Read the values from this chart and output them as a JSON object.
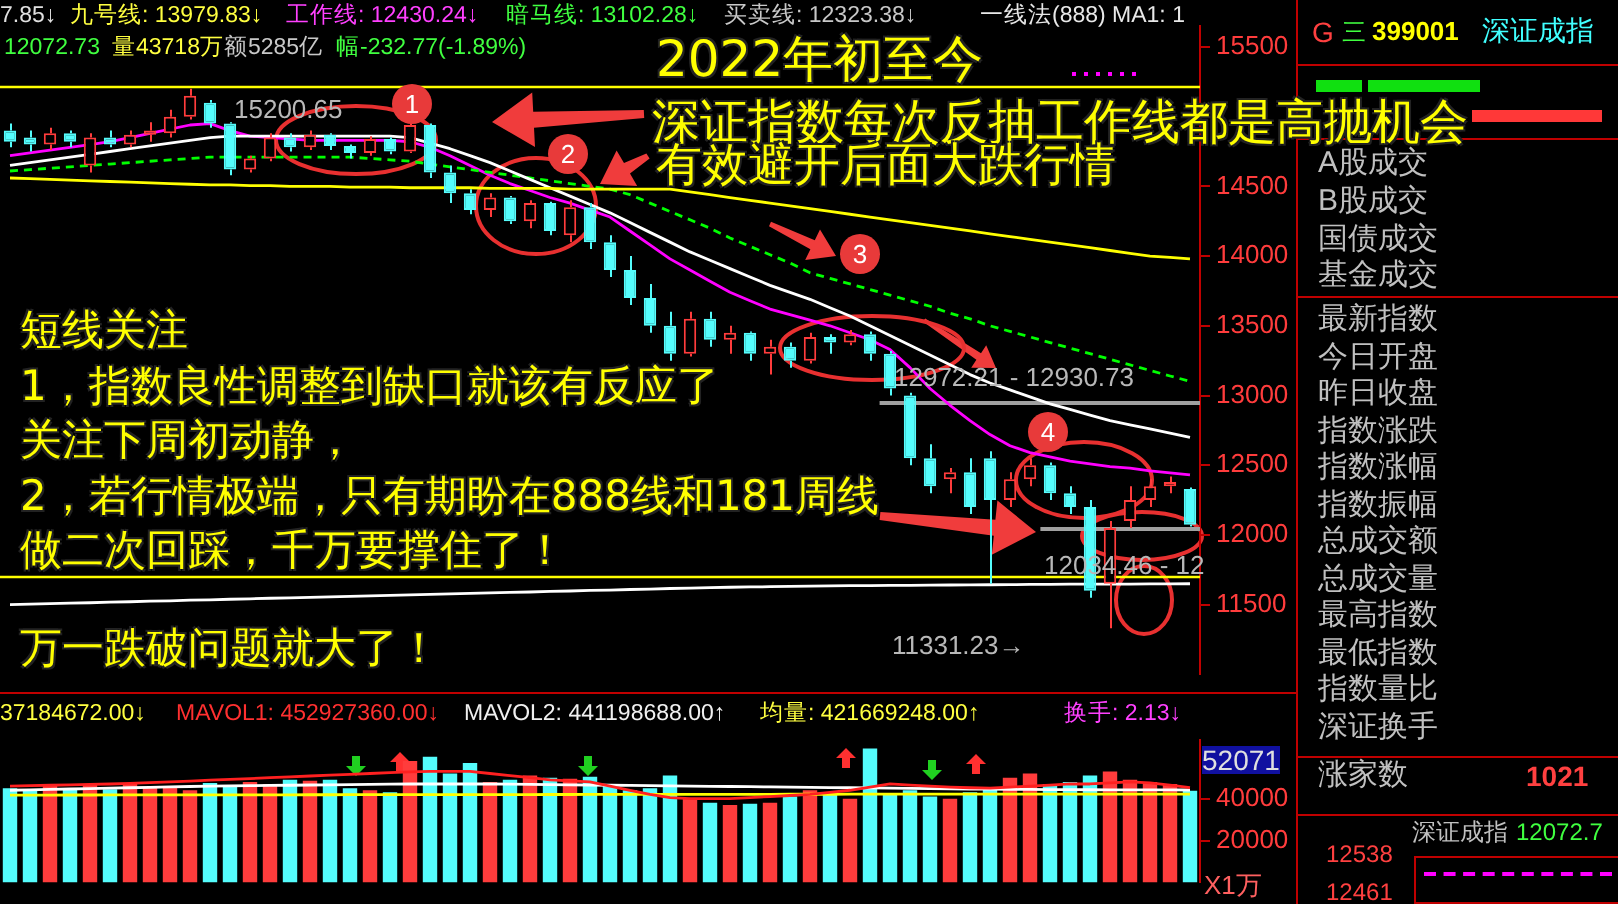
{
  "chart_data": [
    {
      "type": "candlestick",
      "categories": [
        null,
        null,
        null,
        null,
        null,
        null,
        null,
        null,
        null,
        null,
        null,
        null,
        null,
        null,
        null,
        null,
        null,
        null,
        null,
        null,
        null,
        null,
        null,
        null,
        null,
        null,
        null,
        null,
        null,
        null,
        null,
        null,
        null,
        null,
        null,
        null,
        null,
        null,
        null,
        null,
        null,
        null,
        null,
        null,
        null,
        null,
        null,
        null,
        null,
        null,
        null,
        null,
        null,
        null,
        null,
        null,
        null,
        null,
        null,
        null
      ],
      "ohlc": [
        [
          14900,
          14950,
          14780,
          14820
        ],
        [
          14850,
          14900,
          14750,
          14800
        ],
        [
          14800,
          14920,
          14760,
          14880
        ],
        [
          14880,
          14900,
          14780,
          14820
        ],
        [
          14650,
          14880,
          14600,
          14850
        ],
        [
          14850,
          14900,
          14780,
          14800
        ],
        [
          14800,
          14900,
          14780,
          14870
        ],
        [
          14870,
          14960,
          14820,
          14900
        ],
        [
          14880,
          15050,
          14850,
          15000
        ],
        [
          15000,
          15200.65,
          14980,
          15150
        ],
        [
          15100,
          15120,
          14920,
          14950
        ],
        [
          14950,
          14960,
          14580,
          14620
        ],
        [
          14620,
          14720,
          14600,
          14700
        ],
        [
          14700,
          14880,
          14680,
          14850
        ],
        [
          14850,
          14880,
          14750,
          14780
        ],
        [
          14780,
          14900,
          14760,
          14870
        ],
        [
          14870,
          14880,
          14760,
          14790
        ],
        [
          14790,
          14800,
          14700,
          14740
        ],
        [
          14740,
          14860,
          14720,
          14840
        ],
        [
          14840,
          14850,
          14730,
          14750
        ],
        [
          14750,
          14960,
          14740,
          14940
        ],
        [
          14940,
          14950,
          14560,
          14600
        ],
        [
          14600,
          14650,
          14380,
          14450
        ],
        [
          14450,
          14480,
          14300,
          14330
        ],
        [
          14330,
          14450,
          14280,
          14420
        ],
        [
          14420,
          14430,
          14230,
          14250
        ],
        [
          14250,
          14400,
          14200,
          14380
        ],
        [
          14380,
          14390,
          14150,
          14180
        ],
        [
          14150,
          14400,
          14100,
          14350
        ],
        [
          14350,
          14380,
          14050,
          14100
        ],
        [
          14100,
          14150,
          13850,
          13900
        ],
        [
          13900,
          14000,
          13650,
          13700
        ],
        [
          13700,
          13800,
          13450,
          13500
        ],
        [
          13500,
          13600,
          13250,
          13300
        ],
        [
          13300,
          13600,
          13280,
          13550
        ],
        [
          13550,
          13600,
          13350,
          13400
        ],
        [
          13400,
          13500,
          13300,
          13450
        ],
        [
          13450,
          13460,
          13250,
          13300
        ],
        [
          13300,
          13400,
          13150,
          13350
        ],
        [
          13350,
          13380,
          13200,
          13250
        ],
        [
          13250,
          13450,
          13230,
          13420
        ],
        [
          13420,
          13440,
          13300,
          13380
        ],
        [
          13380,
          13470,
          13360,
          13440
        ],
        [
          13440,
          13460,
          13250,
          13300
        ],
        [
          13300,
          13320,
          13000,
          13050
        ],
        [
          13000,
          13020,
          12500,
          12550
        ],
        [
          12550,
          12650,
          12300,
          12350
        ],
        [
          12400,
          12480,
          12300,
          12450
        ],
        [
          12450,
          12550,
          12150,
          12200
        ],
        [
          12550,
          12600,
          11650,
          12250
        ],
        [
          12250,
          12450,
          12200,
          12400
        ],
        [
          12400,
          12550,
          12350,
          12500
        ],
        [
          12500,
          12520,
          12250,
          12300
        ],
        [
          12300,
          12350,
          12150,
          12200
        ],
        [
          12200,
          12250,
          11550,
          11600
        ],
        [
          11650,
          12100,
          11331.23,
          12050
        ],
        [
          12100,
          12350,
          12050,
          12250
        ],
        [
          12250,
          12400,
          12200,
          12350
        ],
        [
          12350,
          12420,
          12300,
          12380
        ],
        [
          12330,
          12340,
          12060,
          12072.73
        ]
      ],
      "colors": [
        "#54fcfc",
        "#54fcfc",
        "#ff3c3c",
        "#54fcfc",
        "#ff3c3c",
        "#54fcfc",
        "#ff3c3c",
        "#ff3c3c",
        "#ff3c3c",
        "#ff3c3c",
        "#54fcfc",
        "#54fcfc",
        "#ff3c3c",
        "#ff3c3c",
        "#54fcfc",
        "#ff3c3c",
        "#54fcfc",
        "#54fcfc",
        "#ff3c3c",
        "#54fcfc",
        "#ff3c3c",
        "#54fcfc",
        "#54fcfc",
        "#54fcfc",
        "#ff3c3c",
        "#54fcfc",
        "#ff3c3c",
        "#54fcfc",
        "#ff3c3c",
        "#54fcfc",
        "#54fcfc",
        "#54fcfc",
        "#54fcfc",
        "#54fcfc",
        "#ff3c3c",
        "#54fcfc",
        "#ff3c3c",
        "#54fcfc",
        "#ff3c3c",
        "#54fcfc",
        "#ff3c3c",
        "#54fcfc",
        "#ff3c3c",
        "#54fcfc",
        "#54fcfc",
        "#54fcfc",
        "#54fcfc",
        "#ff3c3c",
        "#54fcfc",
        "#54fcfc",
        "#ff3c3c",
        "#ff3c3c",
        "#54fcfc",
        "#54fcfc",
        "#54fcfc",
        "#ff3c3c",
        "#ff3c3c",
        "#ff3c3c",
        "#ff3c3c",
        "#54fcfc"
      ],
      "series": [
        {
          "type": "line",
          "color": "#ffff00",
          "values": [
            14560,
            14555,
            14550,
            14545,
            14540,
            14535,
            14530,
            14525,
            14520,
            14515,
            14510,
            14510,
            14505,
            14505,
            14500,
            14500,
            14500,
            14495,
            14495,
            14495,
            14490,
            14490,
            14490,
            14490,
            14485,
            14485,
            14485,
            14485,
            14480,
            14480,
            14480,
            14480,
            14480,
            14480,
            14460,
            14440,
            14420,
            14400,
            14380,
            14360,
            14340,
            14320,
            14300,
            14280,
            14260,
            14240,
            14220,
            14200,
            14180,
            14160,
            14140,
            14120,
            14100,
            14080,
            14060,
            14040,
            14020,
            14000,
            13990,
            13979.83
          ]
        },
        {
          "type": "line",
          "color": "#ffffff",
          "values": [
            14650,
            14670,
            14690,
            14710,
            14730,
            14750,
            14770,
            14790,
            14810,
            14830,
            14850,
            14860,
            14860,
            14860,
            14860,
            14860,
            14860,
            14860,
            14860,
            14860,
            14850,
            14810,
            14770,
            14720,
            14670,
            14610,
            14550,
            14490,
            14430,
            14370,
            14310,
            14240,
            14170,
            14100,
            14030,
            13970,
            13910,
            13850,
            13790,
            13740,
            13690,
            13630,
            13570,
            13500,
            13430,
            13360,
            13290,
            13220,
            13150,
            13090,
            13040,
            12990,
            12940,
            12900,
            12860,
            12820,
            12790,
            12760,
            12730,
            12700
          ]
        },
        {
          "type": "line",
          "color": "#00ff00",
          "line_style": "dashed",
          "values": [
            14610,
            14620,
            14630,
            14640,
            14650,
            14660,
            14670,
            14680,
            14690,
            14700,
            14710,
            14710,
            14710,
            14710,
            14710,
            14710,
            14710,
            14710,
            14700,
            14690,
            14680,
            14660,
            14640,
            14620,
            14600,
            14580,
            14560,
            14540,
            14520,
            14500,
            14480,
            14440,
            14380,
            14320,
            14260,
            14200,
            14130,
            14070,
            14010,
            13950,
            13880,
            13840,
            13800,
            13760,
            13720,
            13680,
            13640,
            13590,
            13550,
            13500,
            13460,
            13420,
            13380,
            13340,
            13300,
            13260,
            13220,
            13180,
            13140,
            13102.28
          ]
        },
        {
          "type": "line",
          "color": "#ff00ff",
          "values": [
            14720,
            14740,
            14760,
            14780,
            14800,
            14820,
            14850,
            14880,
            14910,
            14940,
            14950,
            14900,
            14860,
            14850,
            14840,
            14830,
            14830,
            14830,
            14830,
            14830,
            14820,
            14780,
            14720,
            14650,
            14580,
            14520,
            14470,
            14420,
            14380,
            14330,
            14280,
            14180,
            14080,
            13980,
            13900,
            13820,
            13740,
            13680,
            13620,
            13580,
            13540,
            13500,
            13450,
            13400,
            13330,
            13200,
            13050,
            12930,
            12820,
            12720,
            12640,
            12590,
            12560,
            12530,
            12510,
            12490,
            12480,
            12460,
            12445,
            12430.24
          ]
        },
        {
          "type": "line",
          "color": "#ffffff",
          "values": [
            11500,
            11504,
            11507,
            11511,
            11514,
            11518,
            11521,
            11525,
            11528,
            11532,
            11535,
            11539,
            11542,
            11546,
            11549,
            11553,
            11556,
            11560,
            11563,
            11567,
            11570,
            11574,
            11577,
            11581,
            11584,
            11588,
            11591,
            11595,
            11598,
            11602,
            11605,
            11609,
            11612,
            11616,
            11619,
            11623,
            11625,
            11627,
            11629,
            11631,
            11633,
            11635,
            11636,
            11637,
            11638,
            11639,
            11640,
            11641,
            11642,
            11643,
            11644,
            11645,
            11646,
            11647,
            11647,
            11648,
            11648,
            11649,
            11649,
            11650
          ]
        }
      ],
      "ylim": [
        11000,
        15650
      ],
      "yticks": [
        11500,
        12000,
        12500,
        13000,
        13500,
        14000,
        14500,
        15500
      ],
      "tick_labels": "y",
      "ref_lines": [
        {
          "axis": "y",
          "value": 15220,
          "color": "#ffff00"
        },
        {
          "axis": "y",
          "value": 11700,
          "color": "#ffff00"
        },
        {
          "axis": "y",
          "value": 12950,
          "color": "#a0a0a0"
        },
        {
          "axis": "y",
          "value": 12050,
          "color": "#a0a0a0"
        }
      ],
      "annotations": [
        "7.85↓",
        "九号线: 13979.83↓",
        "工作线: 12430.24↓",
        "暗马线: 13102.28↓",
        "买卖线: 12323.38↓",
        "一线法(888)  MA1: 1",
        "12072.73",
        "量43718万",
        "额5285亿",
        "幅-232.77(-1.89%)",
        "2022年初至今",
        "深证指数每次反抽工作线都是高抛机会",
        "有效避开后面大跌行情",
        "短线关注",
        "1，指数良性调整到缺口就该有反应了",
        "关注下周初动静，",
        "2，若行情极端，只有期盼在888线和181周线",
        "做二次回踩，千万要撑住了！",
        "万一跌破问题就大了！",
        "1",
        "2",
        "3",
        "4",
        {
          "text": "15200.65",
          "y": 15200.65
        },
        "11331.23→",
        "12972.21 - 12930.73",
        "12034.46 - 12"
      ]
    },
    {
      "type": "bar",
      "categories": [
        null,
        null,
        null,
        null,
        null,
        null,
        null,
        null,
        null,
        null,
        null,
        null,
        null,
        null,
        null,
        null,
        null,
        null,
        null,
        null,
        null,
        null,
        null,
        null,
        null,
        null,
        null,
        null,
        null,
        null,
        null,
        null,
        null,
        null,
        null,
        null,
        null,
        null,
        null,
        null,
        null,
        null,
        null,
        null,
        null,
        null,
        null,
        null,
        null,
        null,
        null,
        null,
        null,
        null,
        null,
        null,
        null,
        null,
        null,
        null
      ],
      "series": [
        {
          "type": "bar",
          "colors": [
            "#54fcfc",
            "#54fcfc",
            "#ff3c3c",
            "#54fcfc",
            "#ff3c3c",
            "#54fcfc",
            "#ff3c3c",
            "#ff3c3c",
            "#ff3c3c",
            "#ff3c3c",
            "#54fcfc",
            "#54fcfc",
            "#ff3c3c",
            "#ff3c3c",
            "#54fcfc",
            "#ff3c3c",
            "#54fcfc",
            "#54fcfc",
            "#ff3c3c",
            "#54fcfc",
            "#ff3c3c",
            "#54fcfc",
            "#54fcfc",
            "#54fcfc",
            "#ff3c3c",
            "#54fcfc",
            "#ff3c3c",
            "#54fcfc",
            "#ff3c3c",
            "#54fcfc",
            "#54fcfc",
            "#54fcfc",
            "#54fcfc",
            "#54fcfc",
            "#ff3c3c",
            "#54fcfc",
            "#ff3c3c",
            "#54fcfc",
            "#ff3c3c",
            "#54fcfc",
            "#ff3c3c",
            "#54fcfc",
            "#ff3c3c",
            "#54fcfc",
            "#54fcfc",
            "#54fcfc",
            "#54fcfc",
            "#ff3c3c",
            "#54fcfc",
            "#54fcfc",
            "#ff3c3c",
            "#ff3c3c",
            "#54fcfc",
            "#54fcfc",
            "#54fcfc",
            "#ff3c3c",
            "#ff3c3c",
            "#ff3c3c",
            "#ff3c3c",
            "#54fcfc"
          ],
          "values": [
            45000,
            44000,
            46000,
            45000,
            46500,
            44500,
            47000,
            45500,
            46000,
            44000,
            47500,
            46000,
            48000,
            47000,
            49000,
            48500,
            49000,
            45000,
            44000,
            43000,
            58000,
            60000,
            52000,
            57000,
            48000,
            49000,
            51000,
            50000,
            49500,
            50500,
            47000,
            44000,
            45000,
            51000,
            40000,
            38000,
            37000,
            37500,
            38000,
            41000,
            44000,
            43000,
            40000,
            64000,
            42000,
            44000,
            41000,
            40000,
            43000,
            45000,
            50000,
            52000,
            47000,
            48000,
            51000,
            53000,
            49000,
            48000,
            47000,
            43718
          ]
        },
        {
          "type": "line",
          "color": "#ff2020",
          "values": [
            46000,
            46200,
            46400,
            46600,
            46800,
            47000,
            47300,
            47600,
            48000,
            48400,
            48800,
            49200,
            49600,
            50000,
            50400,
            50800,
            51200,
            51600,
            52000,
            52400,
            52800,
            53000,
            53000,
            53000,
            52000,
            51000,
            50000,
            49000,
            48500,
            48000,
            46000,
            44000,
            42000,
            40500,
            40000,
            40000,
            40000,
            40500,
            41000,
            41500,
            42000,
            43000,
            44000,
            45500,
            47000,
            46500,
            46000,
            45500,
            45200,
            45000,
            45500,
            46000,
            46500,
            47000,
            47000,
            47500,
            48000,
            47500,
            46500,
            45293
          ]
        },
        {
          "type": "line",
          "color": "#ffffff",
          "values": [
            44000,
            44200,
            44400,
            44600,
            44800,
            45000,
            45200,
            45400,
            45600,
            45800,
            46000,
            46100,
            46200,
            46300,
            46400,
            46500,
            46600,
            46700,
            46800,
            46900,
            47000,
            47000,
            47000,
            47000,
            47000,
            46900,
            46800,
            46700,
            46600,
            46500,
            46400,
            46300,
            46200,
            46100,
            46000,
            45900,
            45800,
            45700,
            45600,
            45500,
            45400,
            45300,
            45200,
            45100,
            45000,
            44900,
            44800,
            44700,
            44600,
            44500,
            44450,
            44400,
            44350,
            44300,
            44250,
            44200,
            44180,
            44160,
            44140,
            44120
          ]
        },
        {
          "type": "line",
          "color": "#ffff00",
          "values": [
            41700,
            41710,
            41720,
            41730,
            41740,
            41750,
            41760,
            41770,
            41780,
            41790,
            41800,
            41810,
            41820,
            41830,
            41840,
            41850,
            41860,
            41870,
            41880,
            41890,
            41900,
            41910,
            41920,
            41930,
            41940,
            41950,
            41960,
            41970,
            41980,
            41990,
            42000,
            42010,
            42020,
            42030,
            42040,
            42050,
            42060,
            42070,
            42080,
            42090,
            42100,
            42105,
            42110,
            42115,
            42120,
            42125,
            42130,
            42135,
            42140,
            42145,
            42150,
            42152,
            42154,
            42156,
            42158,
            42160,
            42162,
            42164,
            42166,
            42166.9
          ]
        }
      ],
      "ylim": [
        0,
        68000
      ],
      "yticks": [
        20000,
        40000
      ],
      "tick_labels": "y",
      "annotations": [
        "37184672.00↓",
        "MAVOL1: 452927360.00↓",
        "MAVOL2: 441198688.00↑",
        "均量: 421669248.00↑",
        "换手: 2.13↓",
        "52071",
        "X1万"
      ]
    },
    {
      "type": "other",
      "annotations": [
        "G",
        "三",
        "399001",
        "深证成指",
        "A股成交",
        "B股成交",
        "国债成交",
        "基金成交",
        "最新指数",
        "今日开盘",
        "昨日收盘",
        "指数涨跌",
        "指数涨幅",
        "指数振幅",
        "总成交额",
        "总成交量",
        "最高指数",
        "最低指数",
        "指数量比",
        "深证换手",
        "涨家数",
        "1021",
        "深证成指",
        "12072.7",
        "12538",
        "12461"
      ]
    }
  ]
}
